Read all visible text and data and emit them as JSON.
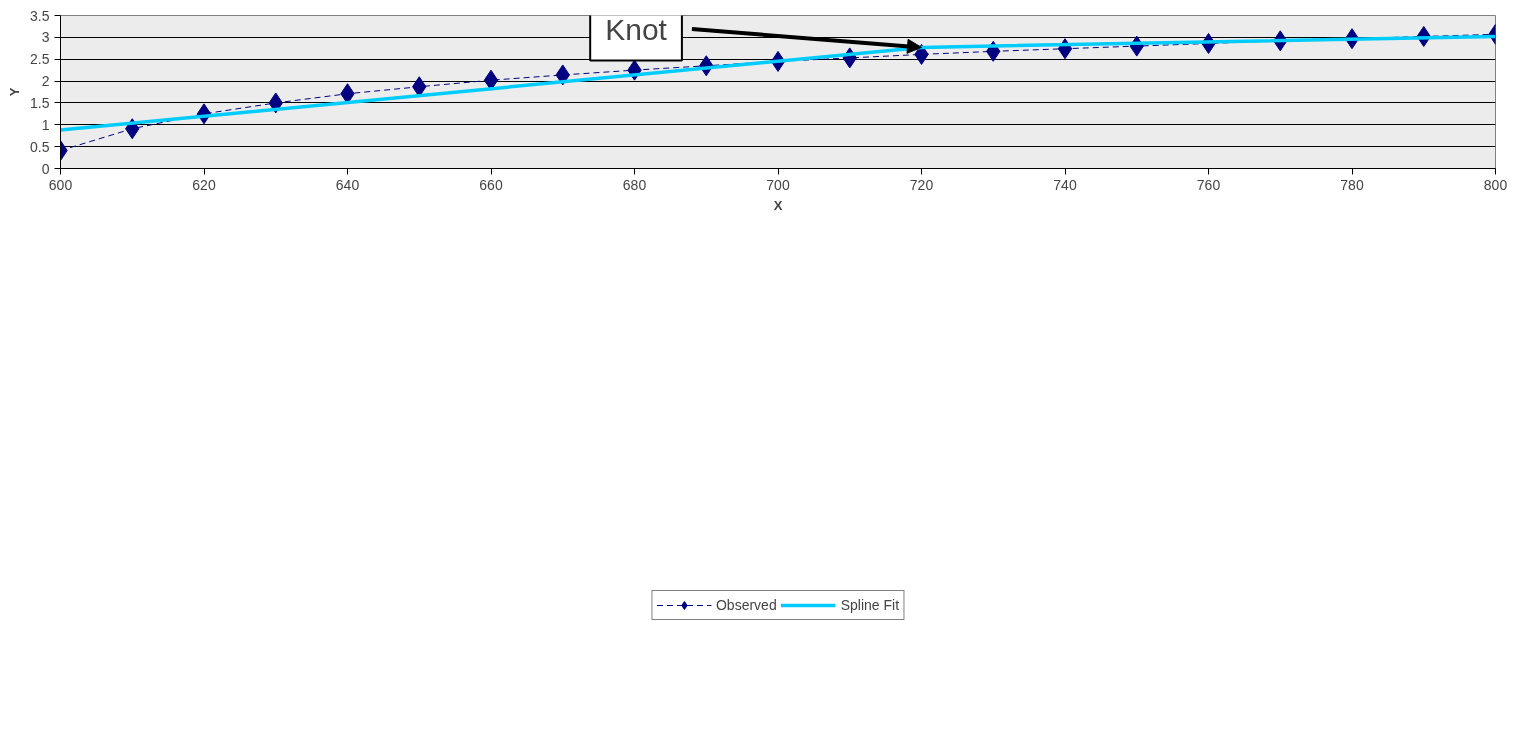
{
  "chart_data": {
    "type": "line",
    "xlabel": "X",
    "ylabel": "Y",
    "xlim": [
      600,
      800
    ],
    "xticks": [
      600,
      620,
      640,
      660,
      680,
      700,
      720,
      740,
      760,
      780,
      800
    ],
    "ylim": [
      0,
      3.5
    ],
    "yticks": [
      0,
      0.5,
      1,
      1.5,
      2,
      2.5,
      3,
      3.5
    ],
    "grid": "y",
    "legend": "bottom",
    "annotations": [
      {
        "text": "Knot",
        "x": 720,
        "y": 2.77
      }
    ],
    "x": [
      600,
      610,
      620,
      630,
      640,
      650,
      660,
      670,
      680,
      690,
      700,
      710,
      720,
      730,
      740,
      750,
      760,
      770,
      780,
      790,
      800
    ],
    "series": [
      {
        "name": "Observed",
        "color": "#000080",
        "marker": "diamond",
        "line_style": "dashed",
        "values": [
          0.41,
          0.91,
          1.25,
          1.5,
          1.71,
          1.87,
          2.02,
          2.14,
          2.25,
          2.35,
          2.45,
          2.53,
          2.61,
          2.68,
          2.74,
          2.8,
          2.86,
          2.92,
          2.97,
          3.02,
          3.07
        ]
      },
      {
        "name": "Spline Fit",
        "color": "#00ccff",
        "marker": "none",
        "line_style": "solid",
        "x": [
          600,
          720,
          800
        ],
        "values": [
          0.88,
          2.77,
          3.02
        ]
      }
    ]
  }
}
